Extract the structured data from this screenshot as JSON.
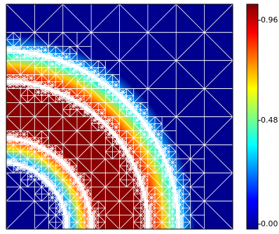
{
  "colorbar": {
    "ticks": [
      {
        "value": 0.96,
        "label": "0.96"
      },
      {
        "value": 0.48,
        "label": "0.48"
      },
      {
        "value": 0.0,
        "label": "0.00"
      }
    ],
    "range": [
      0.0,
      1.0
    ],
    "colormap": "jet"
  },
  "colors": {
    "background_field": "#00008f",
    "mesh_edges": "#ffffff",
    "frame": "#000000"
  }
}
